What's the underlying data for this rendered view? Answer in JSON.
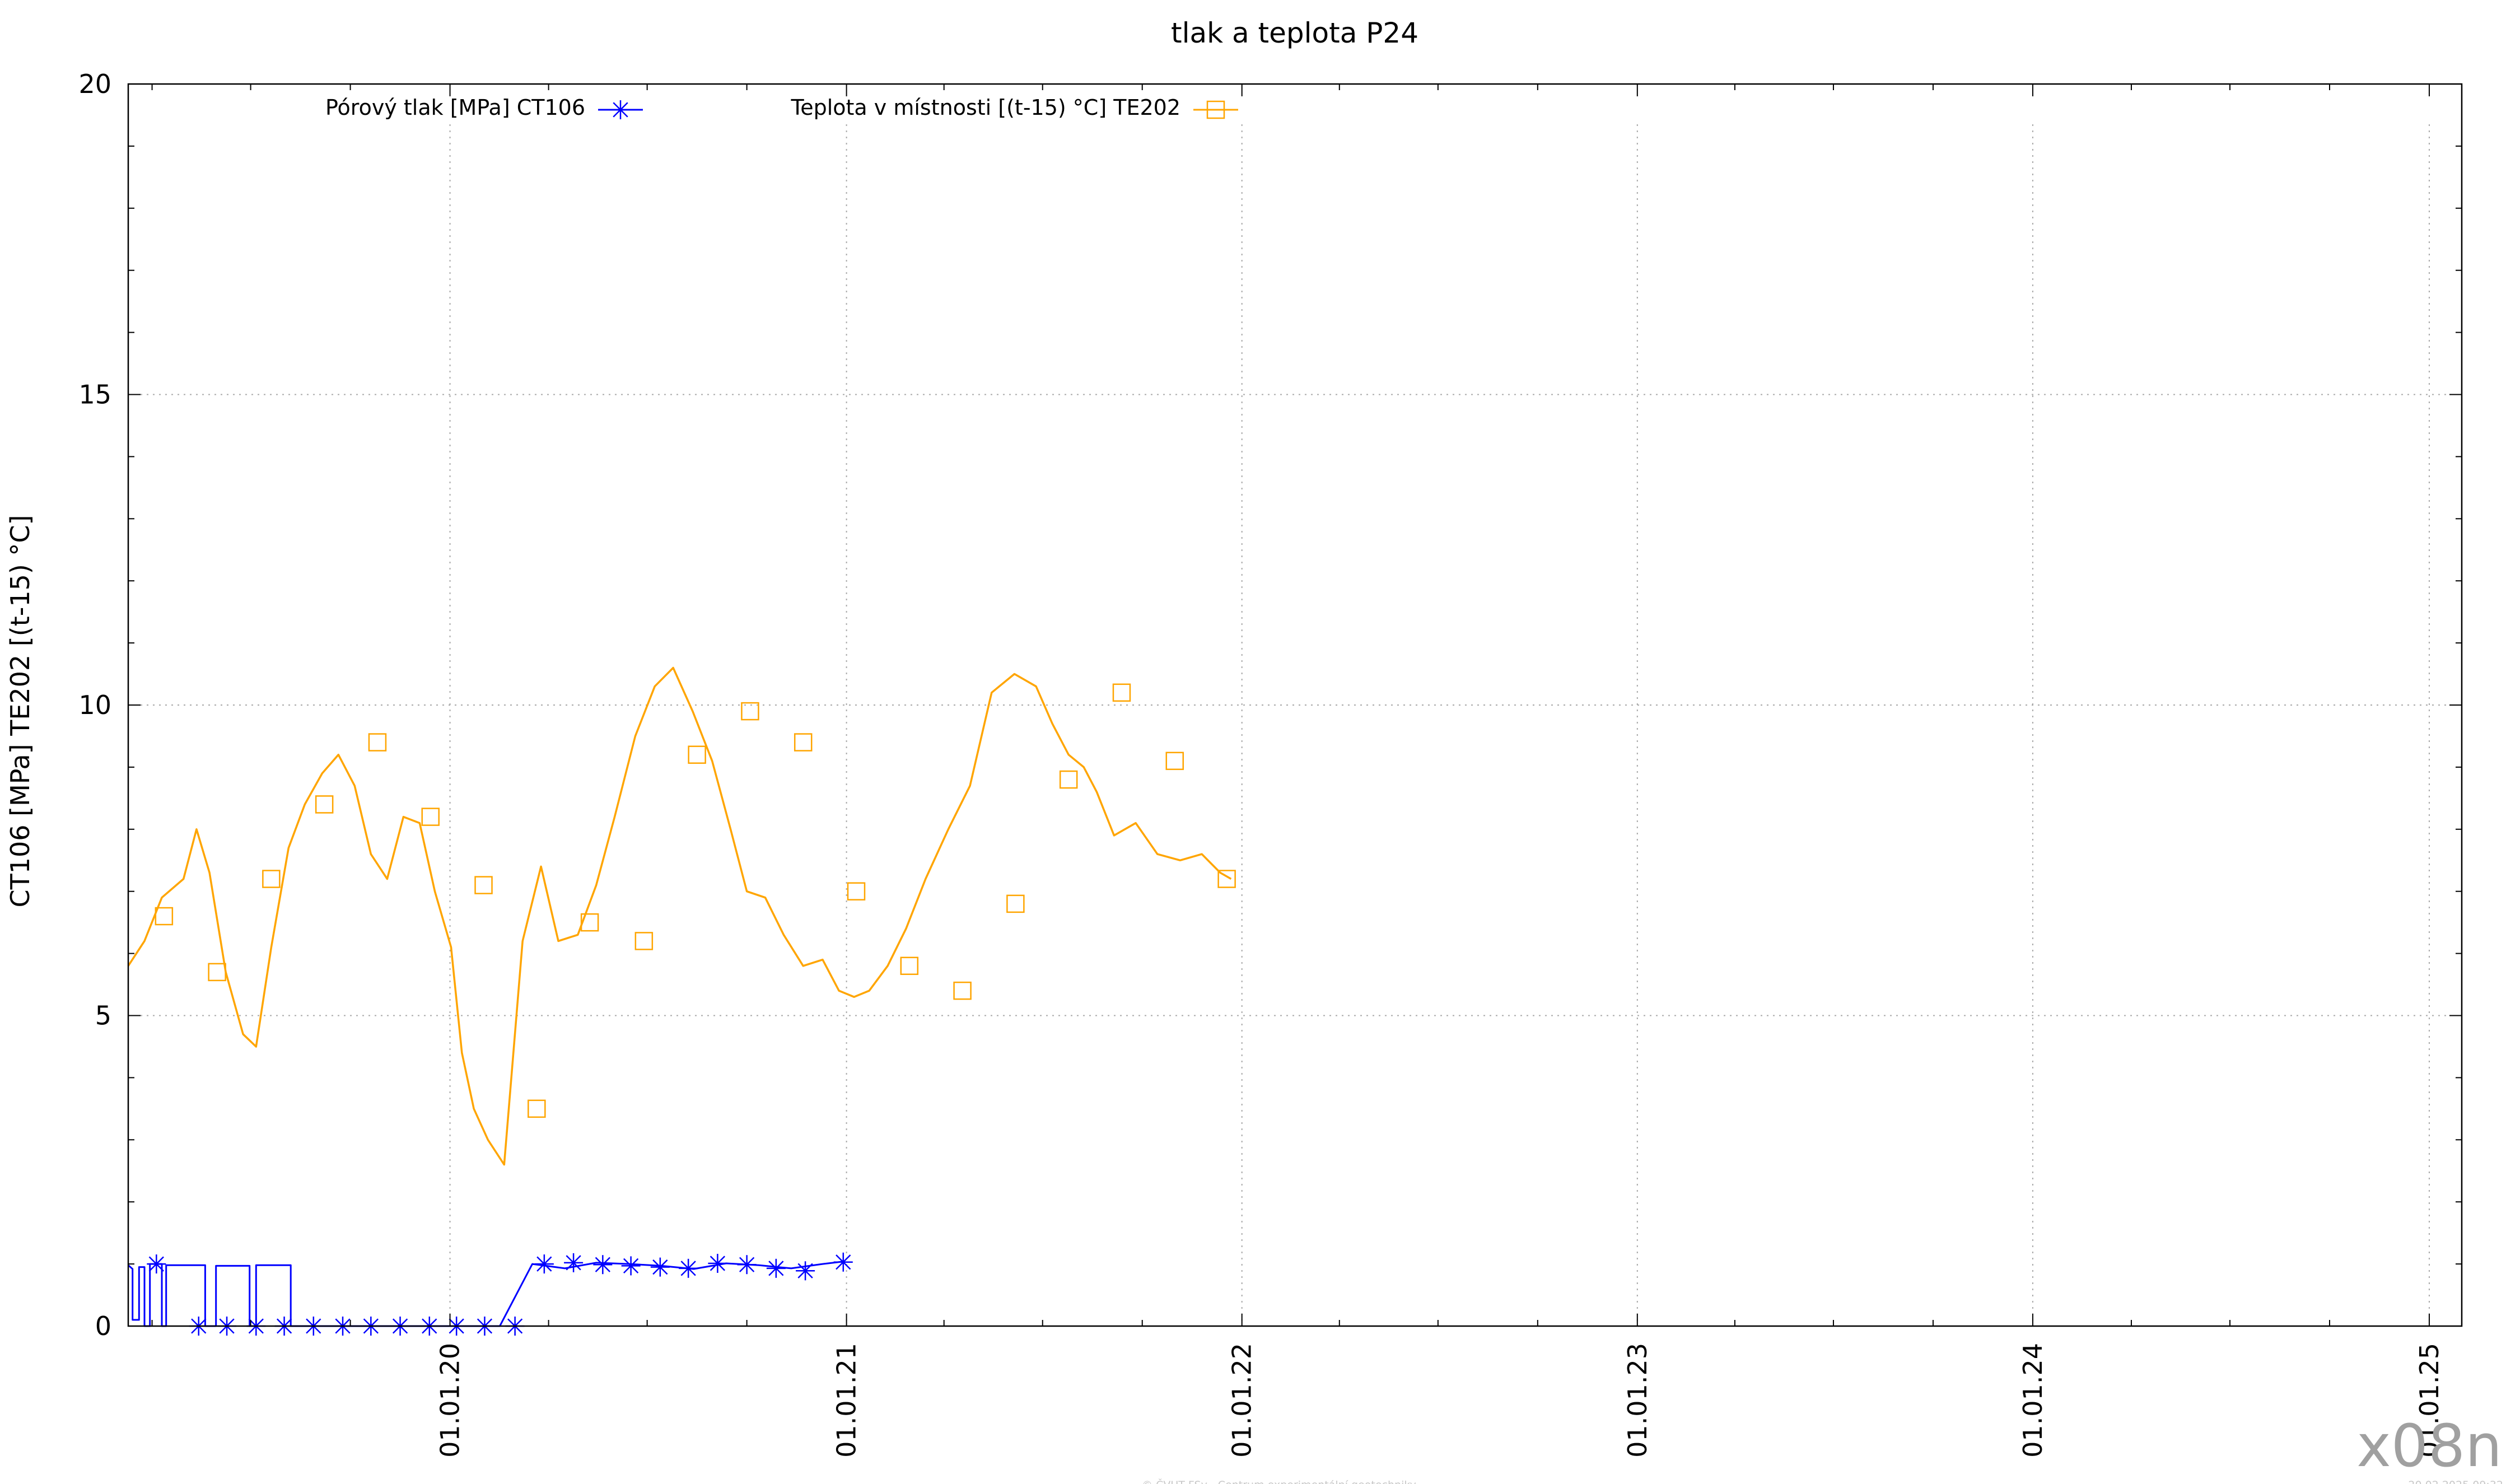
{
  "chart_data": {
    "type": "line",
    "title": "tlak a teplota P24",
    "xlabel": "",
    "ylabel": "CT106 [MPa] TE202 [(t-15) °C]",
    "xlim": [
      "2019-03-10",
      "2025-01-31"
    ],
    "ylim": [
      0,
      20
    ],
    "yticks": [
      0,
      5,
      10,
      15,
      20
    ],
    "xticks": [
      {
        "date": "2020-01-01",
        "label": "01.01.20"
      },
      {
        "date": "2021-01-01",
        "label": "01.01.21"
      },
      {
        "date": "2022-01-01",
        "label": "01.01.22"
      },
      {
        "date": "2023-01-01",
        "label": "01.01.23"
      },
      {
        "date": "2024-01-01",
        "label": "01.01.24"
      },
      {
        "date": "2025-01-01",
        "label": "01.01.25"
      }
    ],
    "grid": true,
    "legend_position": "top",
    "series": [
      {
        "name": "Pórový tlak [MPa] CT106",
        "color": "#0000ff",
        "marker": "asterisk",
        "x": [
          "2019-03-10",
          "2019-03-14",
          "2019-03-14",
          "2019-03-20",
          "2019-03-20",
          "2019-03-25",
          "2019-03-25",
          "2019-03-30",
          "2019-03-30",
          "2019-04-10",
          "2019-04-10",
          "2019-04-14",
          "2019-04-14",
          "2019-05-01",
          "2019-05-20",
          "2019-05-20",
          "2019-05-30",
          "2019-05-30",
          "2019-06-30",
          "2019-06-30",
          "2019-07-06",
          "2019-07-06",
          "2019-08-07",
          "2019-08-07",
          "2019-09-20",
          "2019-09-20",
          "2019-10-20",
          "2019-10-20",
          "2019-11-19",
          "2019-12-19",
          "2020-01-18",
          "2020-02-16",
          "2020-03-17",
          "2020-04-16",
          "2020-05-15",
          "2020-06-14",
          "2020-07-14",
          "2020-08-13",
          "2020-09-12",
          "2020-10-12",
          "2020-11-11",
          "2020-12-10",
          "2020-12-29"
        ],
        "y": [
          0.98,
          0.92,
          0.1,
          0.1,
          0.95,
          0.95,
          0.0,
          0.0,
          1.0,
          1.0,
          0.0,
          0.0,
          0.98,
          0.98,
          0.98,
          0.0,
          0.0,
          0.97,
          0.97,
          0.0,
          0.0,
          0.98,
          0.98,
          0.0,
          0.0,
          0.0,
          0.0,
          0.0,
          0.0,
          0.0,
          0.0,
          0.0,
          1.0,
          0.93,
          1.02,
          1.0,
          0.97,
          0.92,
          1.01,
          0.98,
          0.93,
          1.0,
          1.04
        ],
        "marker_x": [
          "2019-04-05",
          "2019-05-14",
          "2019-06-09",
          "2019-07-06",
          "2019-08-01",
          "2019-08-28",
          "2019-09-24",
          "2019-10-20",
          "2019-11-16",
          "2019-12-13",
          "2020-01-07",
          "2020-02-02",
          "2020-03-01",
          "2020-03-28",
          "2020-04-24",
          "2020-05-21",
          "2020-06-16",
          "2020-07-13",
          "2020-08-08",
          "2020-09-04",
          "2020-10-01",
          "2020-10-28",
          "2020-11-24",
          "2020-12-29"
        ],
        "marker_y": [
          1.0,
          0.0,
          0.0,
          0.0,
          0.0,
          0.0,
          0.0,
          0.0,
          0.0,
          0.0,
          0.0,
          0.0,
          0.0,
          1.0,
          1.02,
          0.99,
          0.97,
          0.95,
          0.93,
          1.01,
          0.99,
          0.93,
          0.89,
          1.03
        ]
      },
      {
        "name": "Teplota v místnosti [(t-15) °C] TE202",
        "color": "#ffa500",
        "marker": "square",
        "x": [
          "2019-03-10",
          "2019-03-25",
          "2019-04-10",
          "2019-04-30",
          "2019-05-12",
          "2019-05-24",
          "2019-06-08",
          "2019-06-24",
          "2019-07-06",
          "2019-07-20",
          "2019-08-05",
          "2019-08-20",
          "2019-09-05",
          "2019-09-20",
          "2019-10-05",
          "2019-10-20",
          "2019-11-04",
          "2019-11-19",
          "2019-12-04",
          "2019-12-18",
          "2020-01-02",
          "2020-01-12",
          "2020-01-23",
          "2020-02-05",
          "2020-02-20",
          "2020-03-08",
          "2020-03-25",
          "2020-04-10",
          "2020-04-28",
          "2020-05-15",
          "2020-06-01",
          "2020-06-20",
          "2020-07-08",
          "2020-07-25",
          "2020-08-12",
          "2020-08-30",
          "2020-09-16",
          "2020-10-01",
          "2020-10-18",
          "2020-11-04",
          "2020-11-22",
          "2020-12-10",
          "2020-12-25",
          "2021-01-08",
          "2021-01-22",
          "2021-02-08",
          "2021-02-25",
          "2021-03-15",
          "2021-04-05",
          "2021-04-25",
          "2021-05-15",
          "2021-06-05",
          "2021-06-25",
          "2021-07-10",
          "2021-07-25",
          "2021-08-08",
          "2021-08-20",
          "2021-09-05",
          "2021-09-25",
          "2021-10-15",
          "2021-11-05",
          "2021-11-25",
          "2021-12-12",
          "2021-12-22"
        ],
        "y": [
          5.8,
          6.2,
          6.9,
          7.2,
          8.0,
          7.3,
          5.7,
          4.7,
          4.5,
          6.1,
          7.7,
          8.4,
          8.9,
          9.2,
          8.7,
          7.6,
          7.2,
          8.2,
          8.1,
          7.0,
          6.1,
          4.4,
          3.5,
          3.0,
          2.6,
          6.2,
          7.4,
          6.2,
          6.3,
          7.1,
          8.2,
          9.5,
          10.3,
          10.6,
          9.9,
          9.1,
          8.0,
          7.0,
          6.9,
          6.3,
          5.8,
          5.9,
          5.4,
          5.3,
          5.4,
          5.8,
          6.4,
          7.2,
          8.0,
          8.7,
          10.2,
          10.5,
          10.3,
          9.7,
          9.2,
          9.0,
          8.6,
          7.9,
          8.1,
          7.6,
          7.5,
          7.6,
          7.3,
          7.2
        ],
        "marker_x": [
          "2019-04-12",
          "2019-05-31",
          "2019-07-20",
          "2019-09-07",
          "2019-10-26",
          "2019-12-14",
          "2020-02-01",
          "2020-03-21",
          "2020-05-09",
          "2020-06-28",
          "2020-08-16",
          "2020-10-04",
          "2020-11-22",
          "2021-01-10",
          "2021-02-28",
          "2021-04-18",
          "2021-06-06",
          "2021-07-25",
          "2021-09-12",
          "2021-10-31",
          "2021-12-18"
        ],
        "marker_y": [
          6.6,
          5.7,
          7.2,
          8.4,
          9.4,
          8.2,
          7.1,
          3.5,
          6.5,
          6.2,
          9.2,
          9.9,
          9.4,
          7.0,
          5.8,
          5.4,
          6.8,
          8.8,
          10.2,
          9.1,
          7.2
        ]
      }
    ],
    "footer": "© ČVUT FSv - Centrum experimentální geotechniky",
    "timestamp": "20.02.2025 09:32",
    "watermark": "x08n"
  }
}
